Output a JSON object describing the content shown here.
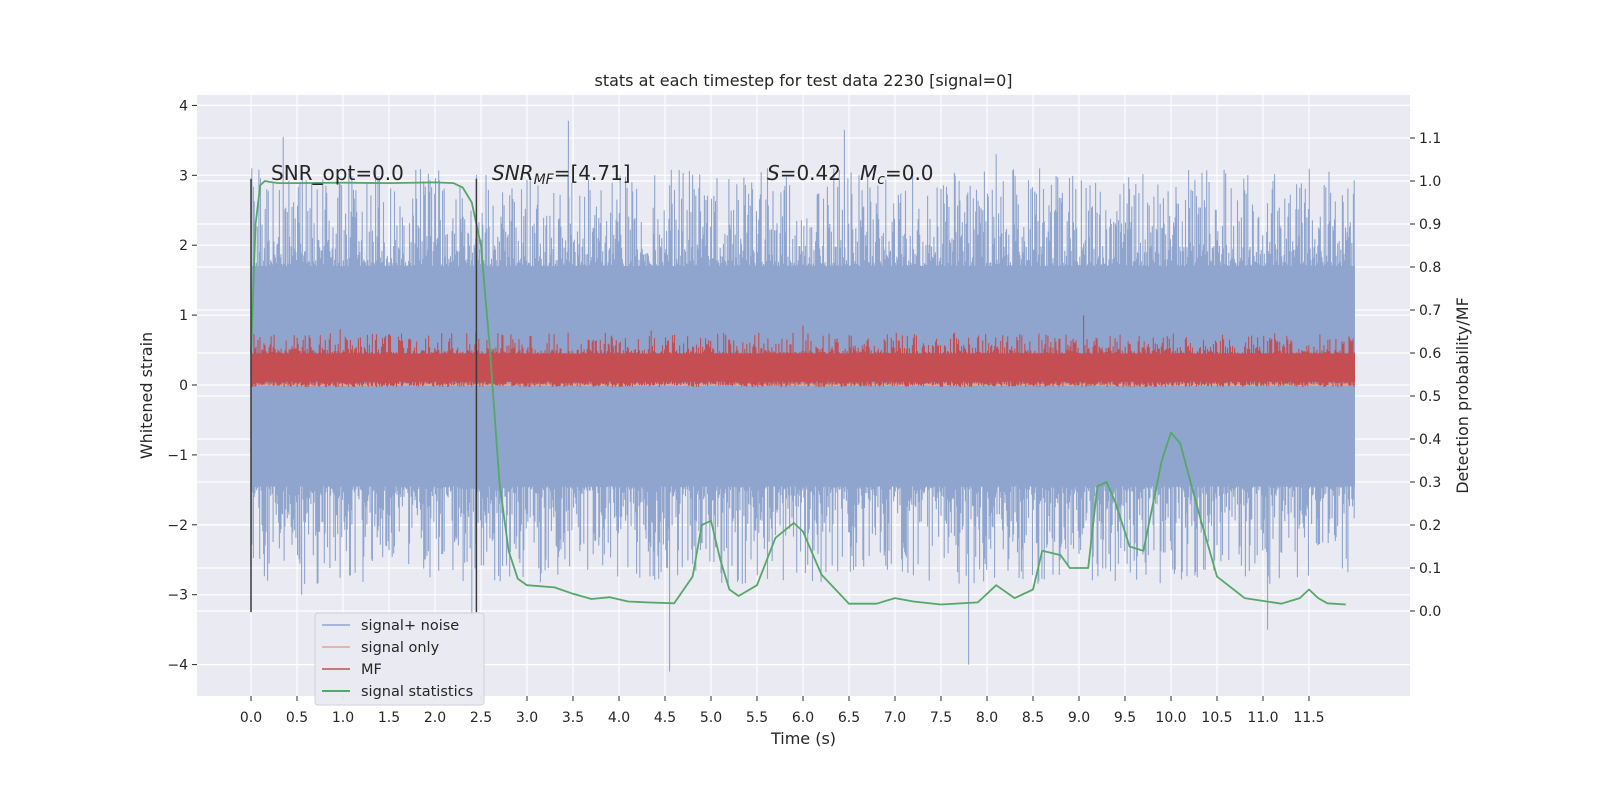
{
  "chart_data": {
    "type": "line",
    "title": "stats at each timestep for test data 2230 [signal=0]",
    "xlabel": "Time (s)",
    "ylabel": "Whitened strain",
    "y2label": "Detection probability/MF",
    "xlim": [
      -0.6,
      12.6
    ],
    "ylim": [
      -4.45,
      4.2
    ],
    "y2lim": [
      -0.2,
      1.2
    ],
    "x_ticks": [
      "0.0",
      "0.5",
      "1.0",
      "1.5",
      "2.0",
      "2.5",
      "3.0",
      "3.5",
      "4.0",
      "4.5",
      "5.0",
      "5.5",
      "6.0",
      "6.5",
      "7.0",
      "7.5",
      "8.0",
      "8.5",
      "9.0",
      "9.5",
      "10.0",
      "10.5",
      "11.0",
      "11.5"
    ],
    "y_ticks": [
      "4",
      "3",
      "2",
      "1",
      "0",
      "−1",
      "−2",
      "−3",
      "−4"
    ],
    "y2_ticks": [
      "1.1",
      "1.0",
      "0.9",
      "0.8",
      "0.7",
      "0.6",
      "0.5",
      "0.4",
      "0.3",
      "0.2",
      "0.1",
      "0.0"
    ],
    "grid": true,
    "legend_position": "lower-left",
    "annotations": {
      "snr_opt": "SNR_opt=0.0",
      "snr_mf_label": "SNR",
      "snr_mf_sub": "MF",
      "snr_mf_value": "=[4.71]",
      "s_label": "S",
      "s_value": "=0.42",
      "mc_label": "M",
      "mc_sub": "c",
      "mc_value": "=0.0"
    },
    "window_markers_x": [
      0.0,
      2.45
    ],
    "series": [
      {
        "name": "signal+ noise",
        "color": "#8fa5cd",
        "axis": "left",
        "kind": "noise",
        "x_range": [
          0.0,
          12.0
        ],
        "core_band": [
          -1.45,
          1.7
        ],
        "peak_range": [
          -4.1,
          3.8
        ],
        "notable_spikes": [
          [
            0.35,
            3.55
          ],
          [
            3.45,
            3.78
          ],
          [
            6.45,
            3.65
          ],
          [
            8.1,
            3.3
          ],
          [
            4.55,
            -4.1
          ],
          [
            7.8,
            -4.0
          ],
          [
            0.55,
            -3.0
          ],
          [
            2.4,
            -3.3
          ],
          [
            11.05,
            -3.5
          ]
        ]
      },
      {
        "name": "signal only",
        "color": "#e8a584",
        "axis": "left",
        "x": [
          0.0,
          12.0
        ],
        "y": [
          0.0,
          0.0
        ]
      },
      {
        "name": "MF",
        "color": "#c44e52",
        "axis": "left",
        "kind": "noise",
        "x_range": [
          0.0,
          12.0
        ],
        "core_band": [
          0.05,
          0.45
        ],
        "peak_range": [
          0.0,
          1.0
        ],
        "notable_spikes": [
          [
            9.05,
            1.0
          ],
          [
            6.0,
            0.85
          ],
          [
            0.97,
            0.8
          ],
          [
            4.35,
            0.78
          ]
        ]
      },
      {
        "name": "signal statistics",
        "color": "#55a868",
        "axis": "right",
        "x": [
          0.0,
          0.05,
          0.1,
          0.15,
          0.2,
          0.3,
          0.5,
          1.0,
          1.5,
          2.0,
          2.2,
          2.3,
          2.4,
          2.5,
          2.6,
          2.7,
          2.8,
          2.9,
          3.0,
          3.3,
          3.5,
          3.7,
          3.9,
          4.1,
          4.3,
          4.6,
          4.8,
          4.9,
          5.0,
          5.1,
          5.2,
          5.3,
          5.5,
          5.7,
          5.9,
          6.0,
          6.2,
          6.5,
          6.8,
          7.0,
          7.2,
          7.5,
          7.9,
          8.1,
          8.3,
          8.5,
          8.6,
          8.8,
          8.9,
          9.1,
          9.2,
          9.3,
          9.4,
          9.55,
          9.7,
          9.9,
          10.0,
          10.1,
          10.3,
          10.5,
          10.8,
          11.2,
          11.4,
          11.5,
          11.6,
          11.7,
          11.9
        ],
        "y": [
          0.6,
          0.9,
          0.99,
          1.0,
          0.998,
          0.995,
          0.995,
          0.996,
          0.995,
          0.997,
          0.995,
          0.985,
          0.95,
          0.85,
          0.6,
          0.3,
          0.14,
          0.075,
          0.06,
          0.055,
          0.04,
          0.028,
          0.032,
          0.022,
          0.02,
          0.018,
          0.08,
          0.2,
          0.21,
          0.12,
          0.05,
          0.035,
          0.06,
          0.17,
          0.205,
          0.185,
          0.085,
          0.017,
          0.017,
          0.03,
          0.022,
          0.015,
          0.02,
          0.06,
          0.03,
          0.05,
          0.14,
          0.13,
          0.1,
          0.1,
          0.29,
          0.3,
          0.25,
          0.15,
          0.14,
          0.35,
          0.415,
          0.39,
          0.23,
          0.08,
          0.03,
          0.017,
          0.03,
          0.05,
          0.03,
          0.018,
          0.015
        ]
      }
    ]
  }
}
